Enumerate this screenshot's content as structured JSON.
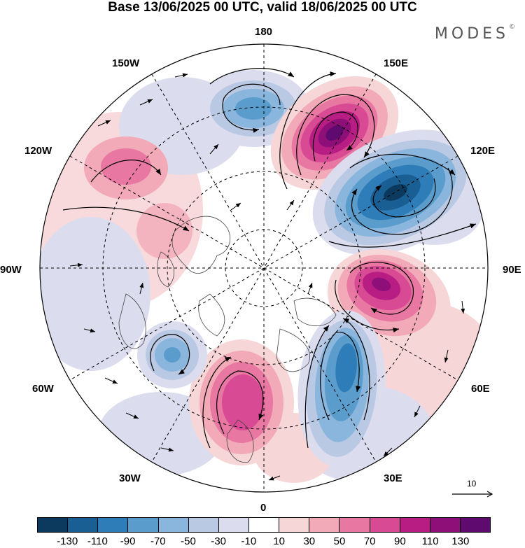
{
  "title": "Base 13/06/2025 00 UTC, valid 18/06/2025 00 UTC",
  "brand": "MODES",
  "brand_mark": "©",
  "longitude_labels": {
    "lon_180": "180",
    "lon_150W": "150W",
    "lon_150E": "150E",
    "lon_120W": "120W",
    "lon_120E": "120E",
    "lon_90W": "90W",
    "lon_90E": "90E",
    "lon_60W": "60W",
    "lon_60E": "60E",
    "lon_30W": "30W",
    "lon_30E": "30E",
    "lon_0": "0"
  },
  "reference_vector": {
    "label": "10"
  },
  "colorbar": {
    "colors": [
      "#0b3a5e",
      "#1a5f94",
      "#2f7db8",
      "#5a9dcc",
      "#8ab5dc",
      "#b9c9e4",
      "#dcdcef",
      "#ffffff",
      "#f7d6d8",
      "#f2aab8",
      "#e878a2",
      "#d84a94",
      "#b81d84",
      "#8e0f78",
      "#5e0a6e"
    ],
    "ticks": [
      "-130",
      "-110",
      "-90",
      "-70",
      "-50",
      "-30",
      "-10",
      "10",
      "30",
      "50",
      "70",
      "90",
      "110",
      "130"
    ]
  },
  "anomaly_centers": [
    {
      "name": "neg-anomaly-180",
      "value": -60,
      "color": "#5a9dcc"
    },
    {
      "name": "pos-anomaly-150E",
      "value": 120,
      "color": "#6a0a72"
    },
    {
      "name": "neg-anomaly-120E",
      "value": -120,
      "color": "#1a5f94"
    },
    {
      "name": "pos-anomaly-90E",
      "value": 100,
      "color": "#8e0f78"
    },
    {
      "name": "neg-anomaly-30E",
      "value": -90,
      "color": "#2f7db8"
    },
    {
      "name": "pos-anomaly-0",
      "value": 70,
      "color": "#d84a94"
    },
    {
      "name": "neg-anomaly-60W",
      "value": -60,
      "color": "#5a9dcc"
    },
    {
      "name": "pos-anomaly-120W",
      "value": 50,
      "color": "#e878a2"
    }
  ]
}
